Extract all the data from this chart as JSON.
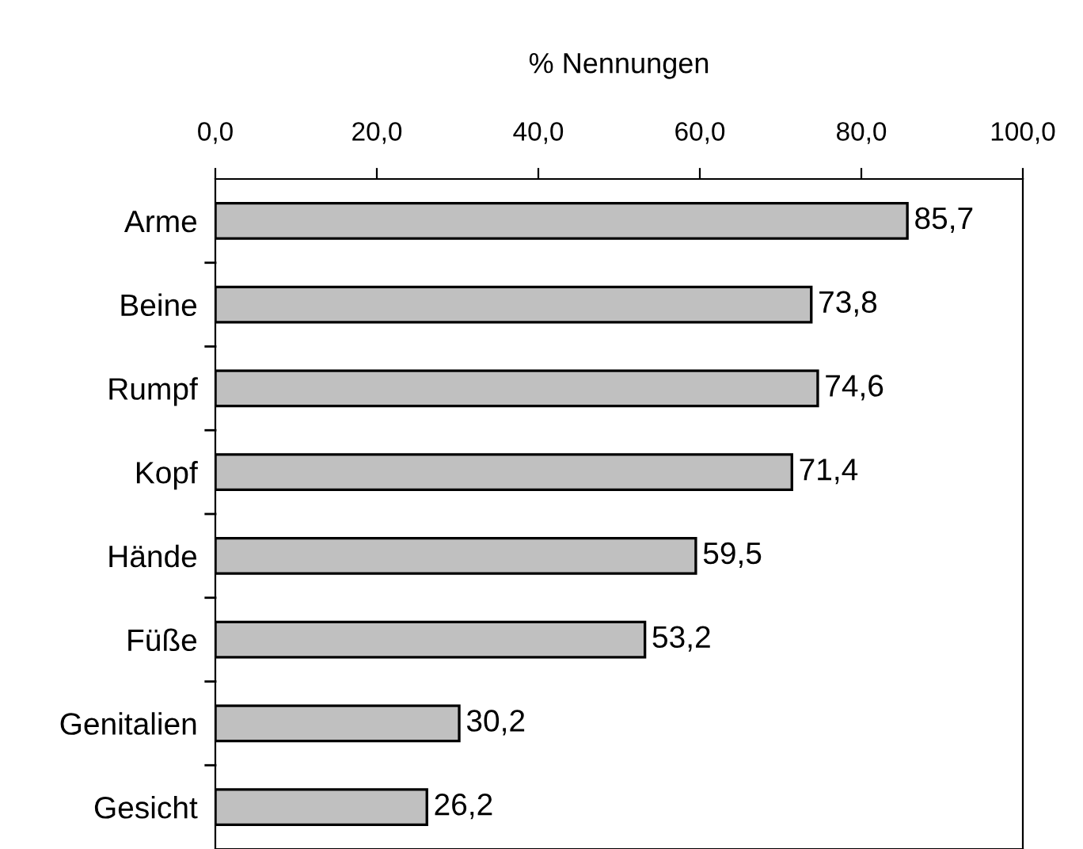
{
  "chart_data": {
    "type": "bar",
    "orientation": "horizontal",
    "xlabel": "% Nennungen",
    "categories": [
      "Arme",
      "Beine",
      "Rumpf",
      "Kopf",
      "Hände",
      "Füße",
      "Genitalien",
      "Gesicht"
    ],
    "values": [
      85.7,
      73.8,
      74.6,
      71.4,
      59.5,
      53.2,
      30.2,
      26.2
    ],
    "value_labels": [
      "85,7",
      "73,8",
      "74,6",
      "71,4",
      "59,5",
      "53,2",
      "30,2",
      "26,2"
    ],
    "color": "#c0c0c0",
    "xlim": [
      0,
      100
    ],
    "xticks": [
      {
        "value": 0,
        "label": "0,0"
      },
      {
        "value": 20,
        "label": "20,0"
      },
      {
        "value": 40,
        "label": "40,0"
      },
      {
        "value": 60,
        "label": "60,0"
      },
      {
        "value": 80,
        "label": "80,0"
      },
      {
        "value": 100,
        "label": "100,0"
      }
    ],
    "grid": false
  }
}
